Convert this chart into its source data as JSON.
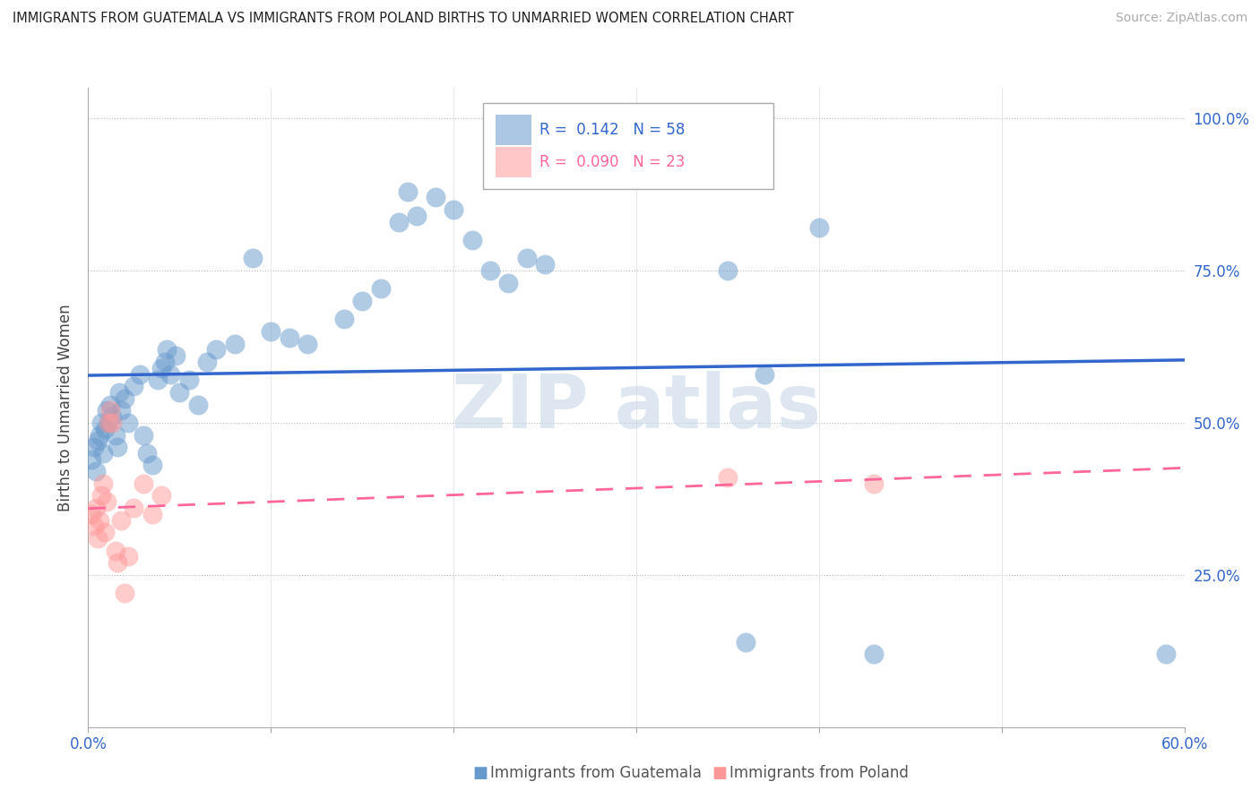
{
  "title": "IMMIGRANTS FROM GUATEMALA VS IMMIGRANTS FROM POLAND BIRTHS TO UNMARRIED WOMEN CORRELATION CHART",
  "source": "Source: ZipAtlas.com",
  "ylabel": "Births to Unmarried Women",
  "r_guatemala": 0.142,
  "n_guatemala": 58,
  "r_poland": 0.09,
  "n_poland": 23,
  "guatemala_color": "#6699CC",
  "poland_color": "#FF9999",
  "guatemala_scatter": [
    [
      0.002,
      0.44
    ],
    [
      0.003,
      0.46
    ],
    [
      0.004,
      0.42
    ],
    [
      0.005,
      0.47
    ],
    [
      0.006,
      0.48
    ],
    [
      0.007,
      0.5
    ],
    [
      0.008,
      0.45
    ],
    [
      0.009,
      0.49
    ],
    [
      0.01,
      0.52
    ],
    [
      0.011,
      0.5
    ],
    [
      0.012,
      0.53
    ],
    [
      0.013,
      0.51
    ],
    [
      0.015,
      0.48
    ],
    [
      0.016,
      0.46
    ],
    [
      0.017,
      0.55
    ],
    [
      0.018,
      0.52
    ],
    [
      0.02,
      0.54
    ],
    [
      0.022,
      0.5
    ],
    [
      0.025,
      0.56
    ],
    [
      0.028,
      0.58
    ],
    [
      0.03,
      0.48
    ],
    [
      0.032,
      0.45
    ],
    [
      0.035,
      0.43
    ],
    [
      0.038,
      0.57
    ],
    [
      0.04,
      0.59
    ],
    [
      0.042,
      0.6
    ],
    [
      0.043,
      0.62
    ],
    [
      0.045,
      0.58
    ],
    [
      0.048,
      0.61
    ],
    [
      0.05,
      0.55
    ],
    [
      0.055,
      0.57
    ],
    [
      0.06,
      0.53
    ],
    [
      0.065,
      0.6
    ],
    [
      0.07,
      0.62
    ],
    [
      0.08,
      0.63
    ],
    [
      0.09,
      0.77
    ],
    [
      0.1,
      0.65
    ],
    [
      0.11,
      0.64
    ],
    [
      0.12,
      0.63
    ],
    [
      0.14,
      0.67
    ],
    [
      0.15,
      0.7
    ],
    [
      0.16,
      0.72
    ],
    [
      0.17,
      0.83
    ],
    [
      0.175,
      0.88
    ],
    [
      0.18,
      0.84
    ],
    [
      0.19,
      0.87
    ],
    [
      0.2,
      0.85
    ],
    [
      0.21,
      0.8
    ],
    [
      0.22,
      0.75
    ],
    [
      0.23,
      0.73
    ],
    [
      0.24,
      0.77
    ],
    [
      0.25,
      0.76
    ],
    [
      0.35,
      0.75
    ],
    [
      0.36,
      0.14
    ],
    [
      0.37,
      0.58
    ],
    [
      0.4,
      0.82
    ],
    [
      0.43,
      0.12
    ],
    [
      0.59,
      0.12
    ]
  ],
  "poland_scatter": [
    [
      0.002,
      0.35
    ],
    [
      0.003,
      0.33
    ],
    [
      0.004,
      0.36
    ],
    [
      0.005,
      0.31
    ],
    [
      0.006,
      0.34
    ],
    [
      0.007,
      0.38
    ],
    [
      0.008,
      0.4
    ],
    [
      0.009,
      0.32
    ],
    [
      0.01,
      0.37
    ],
    [
      0.011,
      0.5
    ],
    [
      0.012,
      0.52
    ],
    [
      0.013,
      0.5
    ],
    [
      0.015,
      0.29
    ],
    [
      0.016,
      0.27
    ],
    [
      0.018,
      0.34
    ],
    [
      0.02,
      0.22
    ],
    [
      0.022,
      0.28
    ],
    [
      0.025,
      0.36
    ],
    [
      0.03,
      0.4
    ],
    [
      0.035,
      0.35
    ],
    [
      0.04,
      0.38
    ],
    [
      0.35,
      0.41
    ],
    [
      0.43,
      0.4
    ]
  ],
  "x_range": [
    0.0,
    0.6
  ],
  "y_range": [
    0.0,
    1.05
  ],
  "yticks": [
    0.0,
    0.25,
    0.5,
    0.75,
    1.0
  ],
  "ytick_labels": [
    "",
    "25.0%",
    "50.0%",
    "75.0%",
    "100.0%"
  ]
}
